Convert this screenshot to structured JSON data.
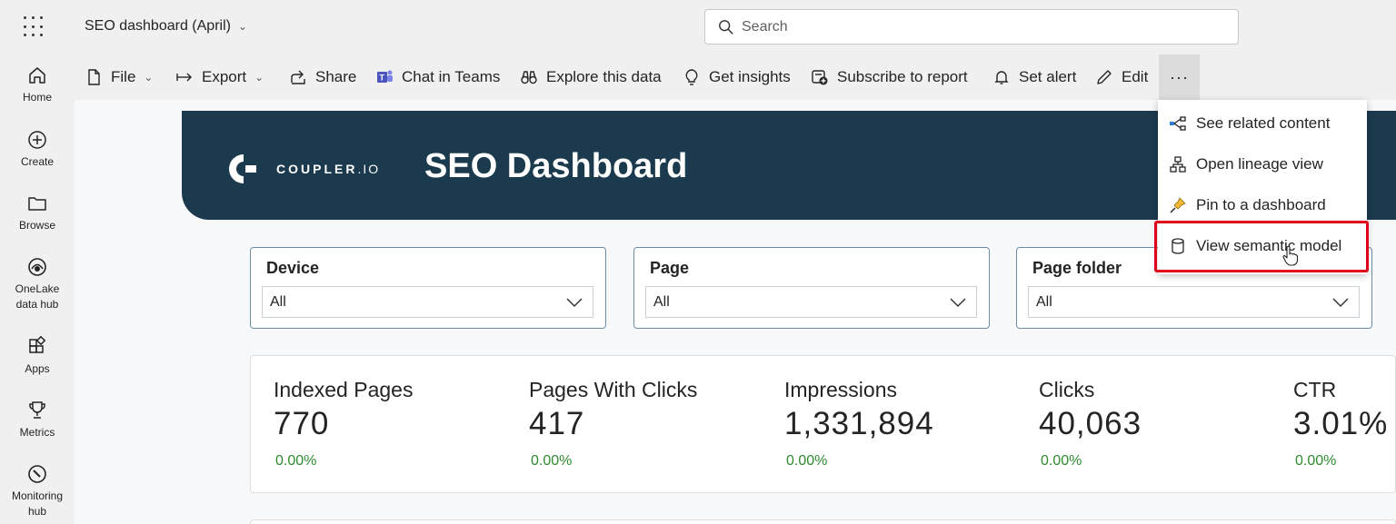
{
  "header": {
    "report_title": "SEO dashboard (April)",
    "search_placeholder": "Search"
  },
  "nav": {
    "items": [
      {
        "label": "Home",
        "icon": "home-icon"
      },
      {
        "label": "Create",
        "icon": "plus-circle-icon"
      },
      {
        "label": "Browse",
        "icon": "folder-icon"
      },
      {
        "label_line1": "OneLake",
        "label_line2": "data hub",
        "icon": "onelake-icon"
      },
      {
        "label": "Apps",
        "icon": "apps-icon"
      },
      {
        "label": "Metrics",
        "icon": "trophy-icon"
      },
      {
        "label_line1": "Monitoring",
        "label_line2": "hub",
        "icon": "monitoring-icon"
      }
    ]
  },
  "toolbar": {
    "file": "File",
    "export": "Export",
    "share": "Share",
    "chat_in_teams": "Chat in Teams",
    "explore": "Explore this data",
    "insights": "Get insights",
    "subscribe": "Subscribe to report",
    "set_alert": "Set alert",
    "edit": "Edit",
    "more": "···"
  },
  "menu": {
    "items": [
      {
        "label": "See related content",
        "icon": "related-content-icon"
      },
      {
        "label": "Open lineage view",
        "icon": "lineage-icon"
      },
      {
        "label": "Pin to a dashboard",
        "icon": "pin-icon"
      },
      {
        "label": "View semantic model",
        "icon": "database-icon"
      }
    ]
  },
  "report": {
    "logo_text_bold": "COUPLER",
    "logo_text_suffix": ".IO",
    "title": "SEO Dashboard",
    "slicers": [
      {
        "label": "Device",
        "value": "All"
      },
      {
        "label": "Page",
        "value": "All"
      },
      {
        "label": "Page folder",
        "value": "All"
      }
    ],
    "kpis": [
      {
        "label": "Indexed Pages",
        "value": "770",
        "change": "0.00%"
      },
      {
        "label": "Pages With Clicks",
        "value": "417",
        "change": "0.00%"
      },
      {
        "label": "Impressions",
        "value": "1,331,894",
        "change": "0.00%"
      },
      {
        "label": "Clicks",
        "value": "40,063",
        "change": "0.00%"
      },
      {
        "label": "CTR",
        "value": "3.01%",
        "change": "0.00%"
      }
    ]
  },
  "colors": {
    "banner": "#1b3a4d",
    "highlight": "#e0001b",
    "positive": "#2e8b2e"
  }
}
